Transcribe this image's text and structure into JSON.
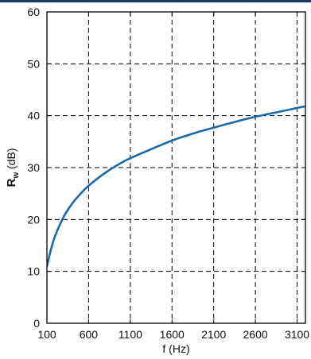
{
  "chart_data": {
    "type": "line",
    "title": "",
    "xlabel": "f (Hz)",
    "ylabel": {
      "symbol": "R",
      "subscript": "w",
      "unit": " (dB)"
    },
    "xlim": [
      100,
      3200
    ],
    "ylim": [
      0,
      60
    ],
    "xticks": [
      100,
      600,
      1100,
      1600,
      2100,
      2600,
      3100
    ],
    "yticks": [
      0,
      10,
      20,
      30,
      40,
      50,
      60
    ],
    "xtick_labels": [
      "100",
      "600",
      "1100",
      "1600",
      "2100",
      "2600",
      "3100"
    ],
    "ytick_labels": [
      "0",
      "10",
      "20",
      "30",
      "40",
      "50",
      "60"
    ],
    "grid": true,
    "grid_style": "dashed",
    "line_color": "#1a6aa8",
    "series": [
      {
        "x": [
          100,
          150,
          200,
          300,
          400,
          500,
          600,
          800,
          1000,
          1100,
          1300,
          1600,
          1900,
          2100,
          2400,
          2600,
          2900,
          3100,
          3200
        ],
        "values": [
          11,
          14.3,
          16.9,
          20.5,
          23.0,
          24.9,
          26.5,
          29.0,
          31.0,
          31.8,
          33.2,
          35.2,
          36.8,
          37.7,
          39.0,
          39.8,
          40.8,
          41.5,
          41.8
        ]
      }
    ]
  }
}
